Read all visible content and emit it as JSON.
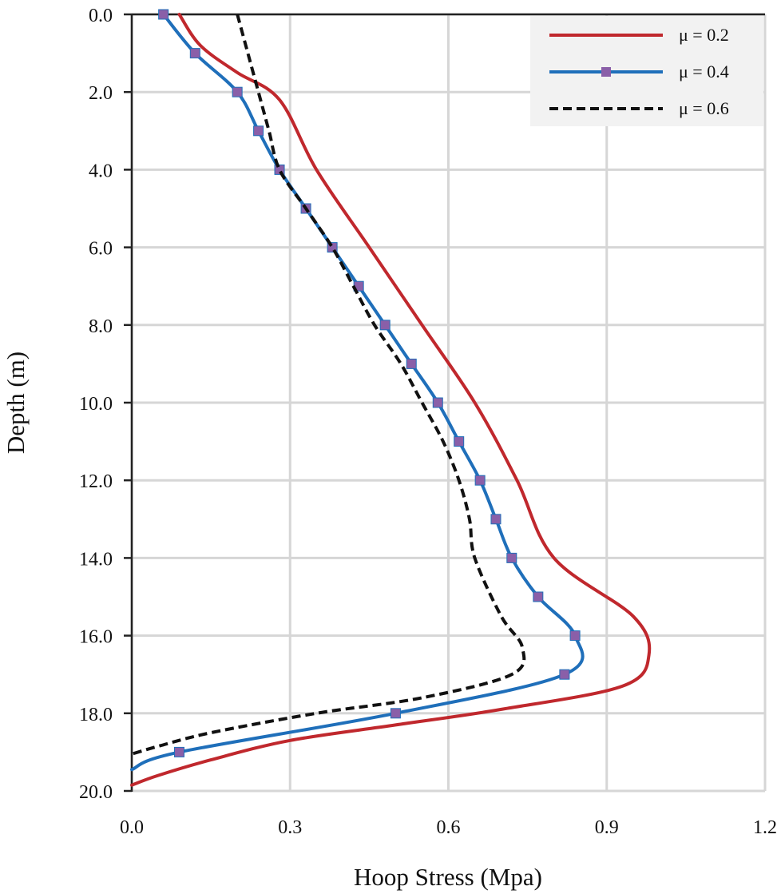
{
  "chart_data": {
    "type": "line",
    "orientation": "depth-profile",
    "title": "",
    "xlabel": "Hoop Stress (Mpa)",
    "ylabel": "Depth (m)",
    "xlim": [
      0.0,
      1.2
    ],
    "ylim": [
      0.0,
      20.0
    ],
    "y_inverted": true,
    "x_ticks": [
      "0.0",
      "0.3",
      "0.6",
      "0.9",
      "1.2"
    ],
    "y_ticks": [
      "0.0",
      "2.0",
      "4.0",
      "6.0",
      "8.0",
      "10.0",
      "12.0",
      "14.0",
      "16.0",
      "18.0",
      "20.0"
    ],
    "grid": true,
    "legend_position": "top-right",
    "series": [
      {
        "name": "μ = 0.2",
        "color": "#c0282d",
        "style": "solid",
        "marker": "none",
        "points": [
          [
            0.09,
            0.0
          ],
          [
            0.13,
            0.8
          ],
          [
            0.2,
            1.5
          ],
          [
            0.28,
            2.2
          ],
          [
            0.35,
            4.0
          ],
          [
            0.45,
            6.0
          ],
          [
            0.55,
            8.0
          ],
          [
            0.65,
            10.0
          ],
          [
            0.73,
            12.0
          ],
          [
            0.8,
            14.0
          ],
          [
            0.95,
            15.5
          ],
          [
            0.98,
            16.5
          ],
          [
            0.93,
            17.3
          ],
          [
            0.7,
            17.9
          ],
          [
            0.5,
            18.3
          ],
          [
            0.3,
            18.7
          ],
          [
            0.15,
            19.2
          ],
          [
            0.05,
            19.6
          ],
          [
            0.0,
            19.85
          ]
        ]
      },
      {
        "name": "μ = 0.4",
        "color": "#1f6fba",
        "marker_color": "#8a5fa8",
        "style": "solid",
        "marker": "square",
        "points": [
          [
            0.06,
            0.0
          ],
          [
            0.12,
            1.0
          ],
          [
            0.2,
            2.0
          ],
          [
            0.24,
            3.0
          ],
          [
            0.28,
            4.0
          ],
          [
            0.33,
            5.0
          ],
          [
            0.38,
            6.0
          ],
          [
            0.43,
            7.0
          ],
          [
            0.48,
            8.0
          ],
          [
            0.53,
            9.0
          ],
          [
            0.58,
            10.0
          ],
          [
            0.62,
            11.0
          ],
          [
            0.66,
            12.0
          ],
          [
            0.69,
            13.0
          ],
          [
            0.72,
            14.0
          ],
          [
            0.77,
            15.0
          ],
          [
            0.84,
            16.0
          ],
          [
            0.82,
            17.0
          ],
          [
            0.5,
            18.0
          ],
          [
            0.09,
            19.0
          ],
          [
            0.0,
            19.45
          ]
        ],
        "marker_indices": [
          0,
          1,
          2,
          3,
          4,
          5,
          6,
          7,
          8,
          9,
          10,
          11,
          12,
          13,
          14,
          15,
          16,
          17,
          18,
          19
        ]
      },
      {
        "name": "μ = 0.6",
        "color": "#111111",
        "style": "dashed",
        "marker": "none",
        "points": [
          [
            0.2,
            0.0
          ],
          [
            0.22,
            1.0
          ],
          [
            0.24,
            2.0
          ],
          [
            0.26,
            3.0
          ],
          [
            0.28,
            4.0
          ],
          [
            0.33,
            5.0
          ],
          [
            0.38,
            6.0
          ],
          [
            0.42,
            7.0
          ],
          [
            0.46,
            8.0
          ],
          [
            0.51,
            9.0
          ],
          [
            0.55,
            10.0
          ],
          [
            0.59,
            11.0
          ],
          [
            0.62,
            12.0
          ],
          [
            0.64,
            13.0
          ],
          [
            0.65,
            14.0
          ],
          [
            0.7,
            15.5
          ],
          [
            0.74,
            16.3
          ],
          [
            0.72,
            17.0
          ],
          [
            0.55,
            17.6
          ],
          [
            0.35,
            18.0
          ],
          [
            0.15,
            18.5
          ],
          [
            0.05,
            18.85
          ],
          [
            0.0,
            19.05
          ]
        ]
      }
    ]
  }
}
